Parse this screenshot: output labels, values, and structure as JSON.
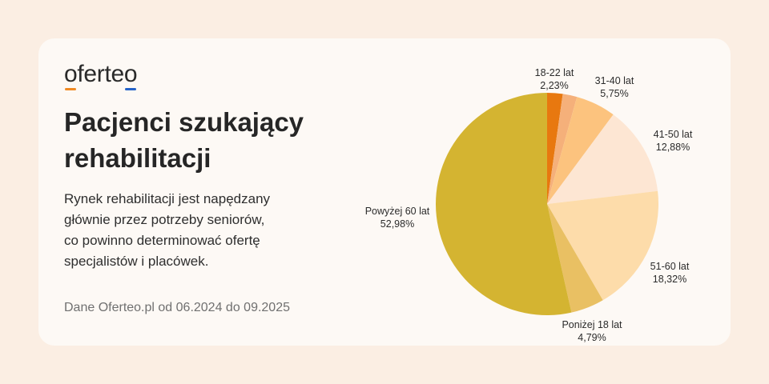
{
  "logo": {
    "first": "o",
    "middle": "ferte",
    "last": "o"
  },
  "title_line1": "Pacjenci szukający",
  "title_line2": "rehabilitacji",
  "description": [
    "Rynek rehabilitacji jest napędzany",
    "głównie przez potrzeby seniorów,",
    "co powinno determinować ofertę",
    "specjalistów i placówek."
  ],
  "source": "Dane Oferteo.pl od 06.2024 do 09.2025",
  "chart_data": {
    "type": "pie",
    "title": "Pacjenci szukający rehabilitacji",
    "slices": [
      {
        "label": "18-22 lat",
        "value": 2.23,
        "display": "2,23%",
        "color": "#e8780f"
      },
      {
        "label": "",
        "value": 2.05,
        "display": "",
        "color": "#f5b07a"
      },
      {
        "label": "31-40 lat",
        "value": 5.75,
        "display": "5,75%",
        "color": "#fcc37e"
      },
      {
        "label": "41-50 lat",
        "value": 12.88,
        "display": "12,88%",
        "color": "#fde6d3"
      },
      {
        "label": "51-60 lat",
        "value": 18.32,
        "display": "18,32%",
        "color": "#fddcaa"
      },
      {
        "label": "Poniżej 18 lat",
        "value": 4.79,
        "display": "4,79%",
        "color": "#e9c063"
      },
      {
        "label": "Powyżej 60 lat",
        "value": 52.98,
        "display": "52,98%",
        "color": "#d4b431"
      }
    ]
  }
}
